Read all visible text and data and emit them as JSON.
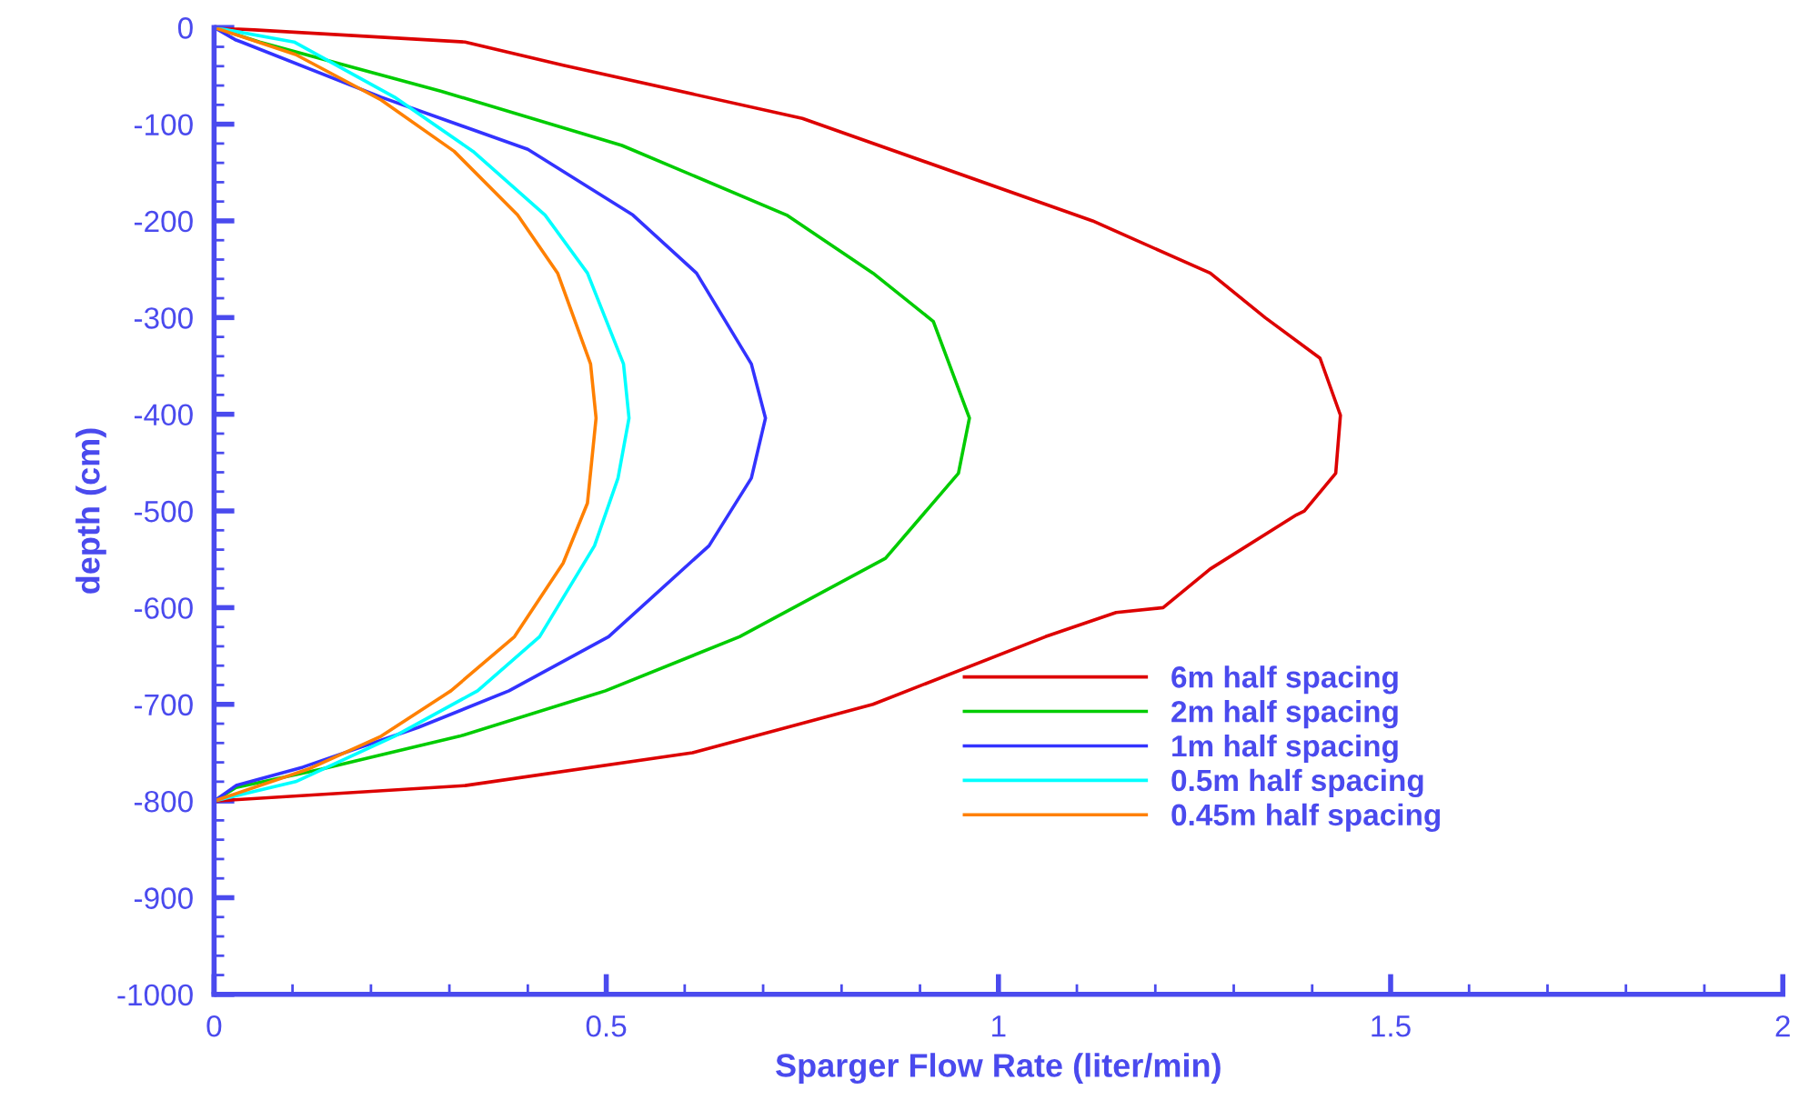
{
  "chart_data": {
    "type": "line",
    "xlabel": "Sparger Flow Rate (liter/min)",
    "ylabel": "depth (cm)",
    "xlim": [
      0,
      2
    ],
    "ylim": [
      -1000,
      0
    ],
    "xticks": [
      0,
      0.5,
      1,
      1.5,
      2
    ],
    "yticks": [
      0,
      -100,
      -200,
      -300,
      -400,
      -500,
      -600,
      -700,
      -800,
      -900,
      -1000
    ],
    "grid": false,
    "legend": "bottom right",
    "marker": "none",
    "line_style": "solid",
    "series": [
      {
        "name": "6m half spacing",
        "color": "#dd0000",
        "x": [
          0,
          0.32,
          0.445,
          0.75,
          1.12,
          1.27,
          1.34,
          1.41,
          1.436,
          1.43,
          1.39,
          1.38,
          1.27,
          1.21,
          1.15,
          1.06,
          0.84,
          0.61,
          0.32,
          0
        ],
        "values": [
          0,
          -15,
          -39,
          -94,
          -200,
          -254,
          -300,
          -342,
          -401,
          -461,
          -500,
          -504,
          -560,
          -600,
          -605,
          -630,
          -700,
          -750,
          -784,
          -800
        ]
      },
      {
        "name": "2m half spacing",
        "color": "#00cc00",
        "x": [
          0,
          0.058,
          0.29,
          0.52,
          0.73,
          0.84,
          0.917,
          0.963,
          0.949,
          0.856,
          0.67,
          0.499,
          0.313,
          0.137,
          0.028,
          0
        ],
        "values": [
          0,
          -15,
          -66,
          -122,
          -194,
          -254,
          -304,
          -404,
          -461,
          -549,
          -630,
          -686,
          -733,
          -767,
          -786,
          -800
        ]
      },
      {
        "name": "1m half spacing",
        "color": "#3333ff",
        "x": [
          0,
          0.028,
          0.035,
          0.213,
          0.4,
          0.534,
          0.615,
          0.685,
          0.703,
          0.685,
          0.631,
          0.503,
          0.376,
          0.26,
          0.113,
          0.028,
          0
        ],
        "values": [
          0,
          -13,
          -15,
          -72,
          -126,
          -194,
          -254,
          -348,
          -404,
          -466,
          -536,
          -630,
          -686,
          -724,
          -765,
          -784,
          -800
        ]
      },
      {
        "name": "0.5m half spacing",
        "color": "#00ffff",
        "x": [
          0,
          0.102,
          0.23,
          0.33,
          0.422,
          0.476,
          0.522,
          0.529,
          0.515,
          0.485,
          0.415,
          0.336,
          0.23,
          0.104,
          0
        ],
        "values": [
          0,
          -15,
          -72,
          -128,
          -194,
          -254,
          -348,
          -404,
          -466,
          -536,
          -630,
          -686,
          -733,
          -780,
          -800
        ]
      },
      {
        "name": "0.45m half spacing",
        "color": "#ff8000",
        "x": [
          0,
          0.104,
          0.213,
          0.306,
          0.387,
          0.438,
          0.48,
          0.487,
          0.476,
          0.445,
          0.383,
          0.302,
          0.213,
          0.12,
          0
        ],
        "values": [
          0,
          -28,
          -75,
          -128,
          -194,
          -254,
          -348,
          -404,
          -492,
          -554,
          -630,
          -686,
          -733,
          -767,
          -800
        ]
      }
    ]
  }
}
